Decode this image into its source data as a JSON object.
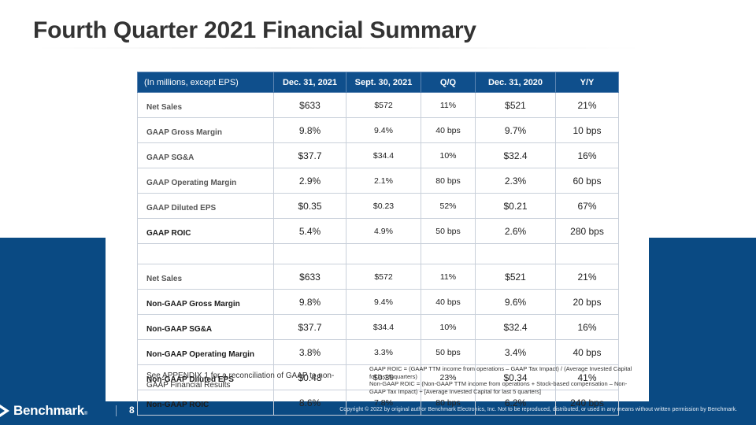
{
  "slide": {
    "title": "Fourth Quarter 2021 Financial Summary",
    "page_number": "8",
    "logo_text": "Benchmark",
    "logo_tm": "®",
    "copyright": "Copyright © 2022 by original author Benchmark Electronics, Inc. Not to be reproduced, distributed, or used in any means without written permission by Benchmark."
  },
  "colors": {
    "brand_blue": "#0a4a83",
    "header_blue": "#0f4f8c"
  },
  "table": {
    "headers": [
      "(In millions, except EPS)",
      "Dec. 31, 2021",
      "Sept. 30, 2021",
      "Q/Q",
      "Dec. 31, 2020",
      "Y/Y"
    ],
    "gaap_rows": [
      {
        "label": "Net Sales",
        "cells": [
          "$633",
          "$572",
          "11%",
          "$521",
          "21%"
        ]
      },
      {
        "label": "GAAP Gross Margin",
        "cells": [
          "9.8%",
          "9.4%",
          "40 bps",
          "9.7%",
          "10 bps"
        ]
      },
      {
        "label": "GAAP SG&A",
        "cells": [
          "$37.7",
          "$34.4",
          "10%",
          "$32.4",
          "16%"
        ]
      },
      {
        "label": "GAAP Operating Margin",
        "cells": [
          "2.9%",
          "2.1%",
          "80 bps",
          "2.3%",
          "60 bps"
        ]
      },
      {
        "label": "GAAP Diluted EPS",
        "cells": [
          "$0.35",
          "$0.23",
          "52%",
          "$0.21",
          "67%"
        ]
      },
      {
        "label": "GAAP ROIC",
        "cells": [
          "5.4%",
          "4.9%",
          "50 bps",
          "2.6%",
          "280 bps"
        ]
      }
    ],
    "non_gaap_rows": [
      {
        "label": "Net Sales",
        "cells": [
          "$633",
          "$572",
          "11%",
          "$521",
          "21%"
        ]
      },
      {
        "label": "Non-GAAP Gross Margin",
        "cells": [
          "9.8%",
          "9.4%",
          "40 bps",
          "9.6%",
          "20 bps"
        ]
      },
      {
        "label": "Non-GAAP SG&A",
        "cells": [
          "$37.7",
          "$34.4",
          "10%",
          "$32.4",
          "16%"
        ]
      },
      {
        "label": "Non-GAAP Operating Margin",
        "cells": [
          "3.8%",
          "3.3%",
          "50 bps",
          "3.4%",
          "40 bps"
        ]
      },
      {
        "label": "Non-GAAP Diluted EPS",
        "cells": [
          "$0.48",
          "$0.39",
          "23%",
          "$0.34",
          "41%"
        ]
      },
      {
        "label": "Non-GAAP ROIC",
        "cells": [
          "8.6%",
          "7.8%",
          "80 bps",
          "6.2%",
          "240 bps"
        ]
      }
    ]
  },
  "footnotes": {
    "appendix": "See APPENDIX 1 for a reconciliation of GAAP to non-GAAP Financial Results",
    "gaap_roic": "GAAP ROIC = (GAAP TTM income from operations – GAAP Tax Impact) / (Average Invested Capital for last 5 quarters)",
    "non_gaap_roic": "Non-GAAP ROIC = (Non-GAAP TTM income from operations + Stock-based compensation – Non-GAAP Tax Impact) ÷ [Average Invested Capital for last 5 quarters]"
  }
}
